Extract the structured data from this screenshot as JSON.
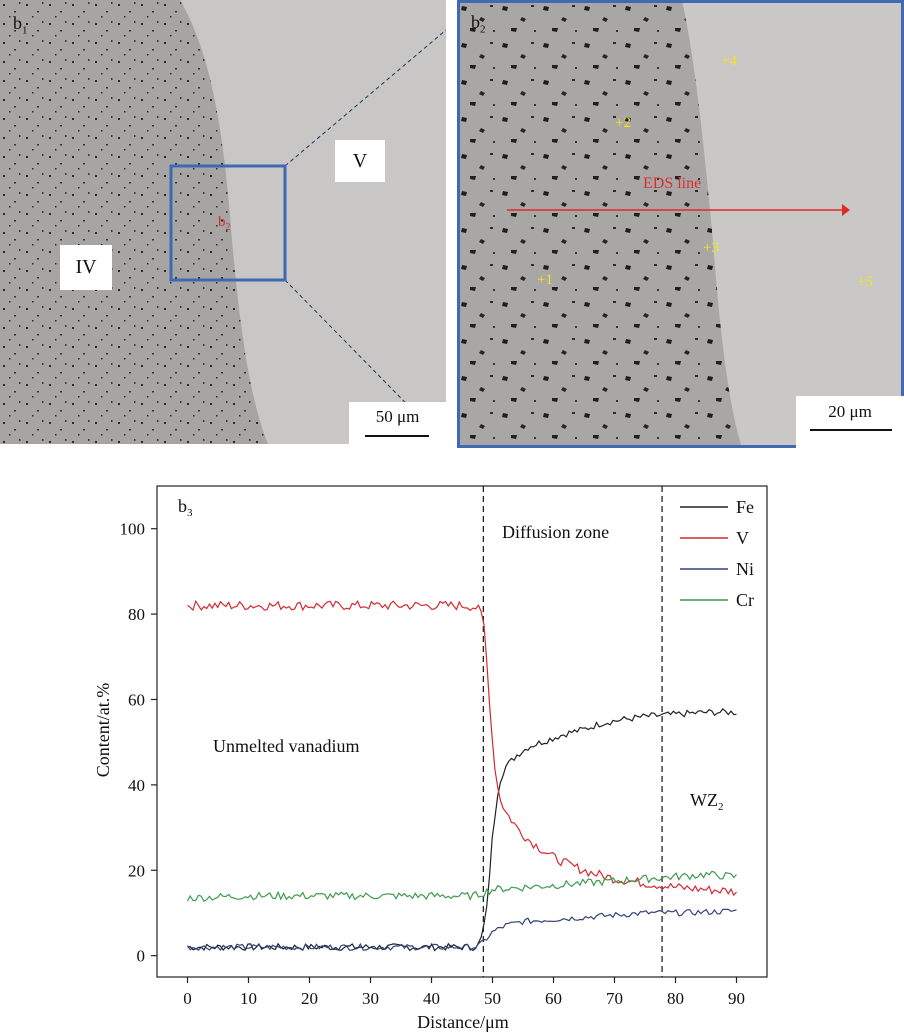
{
  "b1": {
    "label": "b",
    "label_sub": "1",
    "zone_iv": "IV",
    "zone_v": "V",
    "inset_label": "b",
    "inset_sub": "2",
    "scale": "50 μm"
  },
  "b2": {
    "label": "b",
    "label_sub": "2",
    "eds": "EDS line",
    "scale": "20 μm",
    "points": [
      "+1",
      "+2",
      "+3",
      "+4",
      "+5"
    ]
  },
  "chart_data": {
    "type": "line",
    "label": "b",
    "label_sub": "3",
    "xlabel": "Distance/μm",
    "ylabel": "Content/at.%",
    "xlim": [
      -5,
      95
    ],
    "ylim": [
      -5,
      110
    ],
    "xticks": [
      0,
      10,
      20,
      30,
      40,
      50,
      60,
      70,
      80,
      90
    ],
    "yticks": [
      0,
      20,
      40,
      60,
      80,
      100
    ],
    "annotations": {
      "unmelted": "Unmelted vanadium",
      "diffusion": "Diffusion zone",
      "wz": "WZ",
      "wz_sub": "2"
    },
    "boundaries": [
      48.5,
      77.8
    ],
    "legend_position": "top-right",
    "series": [
      {
        "name": "Fe",
        "color": "#222222",
        "x": [
          0,
          10,
          20,
          30,
          40,
          47,
          48,
          49,
          50,
          51,
          52,
          54,
          56,
          58,
          60,
          62,
          65,
          68,
          70,
          75,
          80,
          85,
          90
        ],
        "y": [
          2,
          2,
          2,
          2,
          2,
          2,
          3,
          10,
          28,
          40,
          44,
          47,
          49,
          50,
          51,
          52,
          53,
          54.5,
          55,
          56,
          56.5,
          57,
          57
        ]
      },
      {
        "name": "V",
        "color": "#d42a2f",
        "x": [
          0,
          10,
          20,
          30,
          40,
          46,
          47.5,
          48.5,
          49,
          49.5,
          50,
          50.5,
          51,
          52,
          54,
          56,
          58,
          60,
          63,
          66,
          70,
          75,
          80,
          85,
          90
        ],
        "y": [
          82,
          82,
          82,
          82,
          82,
          82,
          81.5,
          79,
          70,
          60,
          50,
          43,
          38,
          34,
          30,
          27,
          25,
          23,
          21,
          19.5,
          18,
          17,
          16,
          15.5,
          15
        ]
      },
      {
        "name": "Ni",
        "color": "#34407a",
        "x": [
          0,
          10,
          20,
          30,
          40,
          47,
          48,
          49,
          50,
          52,
          55,
          60,
          65,
          70,
          75,
          80,
          85,
          90
        ],
        "y": [
          2,
          2,
          2,
          2,
          2,
          2,
          2.5,
          4,
          5.5,
          7,
          8,
          8.5,
          9,
          9.5,
          10,
          10,
          10.2,
          10.5
        ]
      },
      {
        "name": "Cr",
        "color": "#3d9a4e",
        "x": [
          0,
          10,
          20,
          30,
          40,
          47,
          48,
          49,
          50,
          55,
          60,
          65,
          70,
          75,
          80,
          85,
          90
        ],
        "y": [
          13.5,
          14,
          14,
          14,
          14,
          14,
          14.5,
          15,
          15.5,
          16,
          16.5,
          17,
          17.5,
          18,
          18.5,
          19,
          18.5
        ]
      }
    ]
  }
}
